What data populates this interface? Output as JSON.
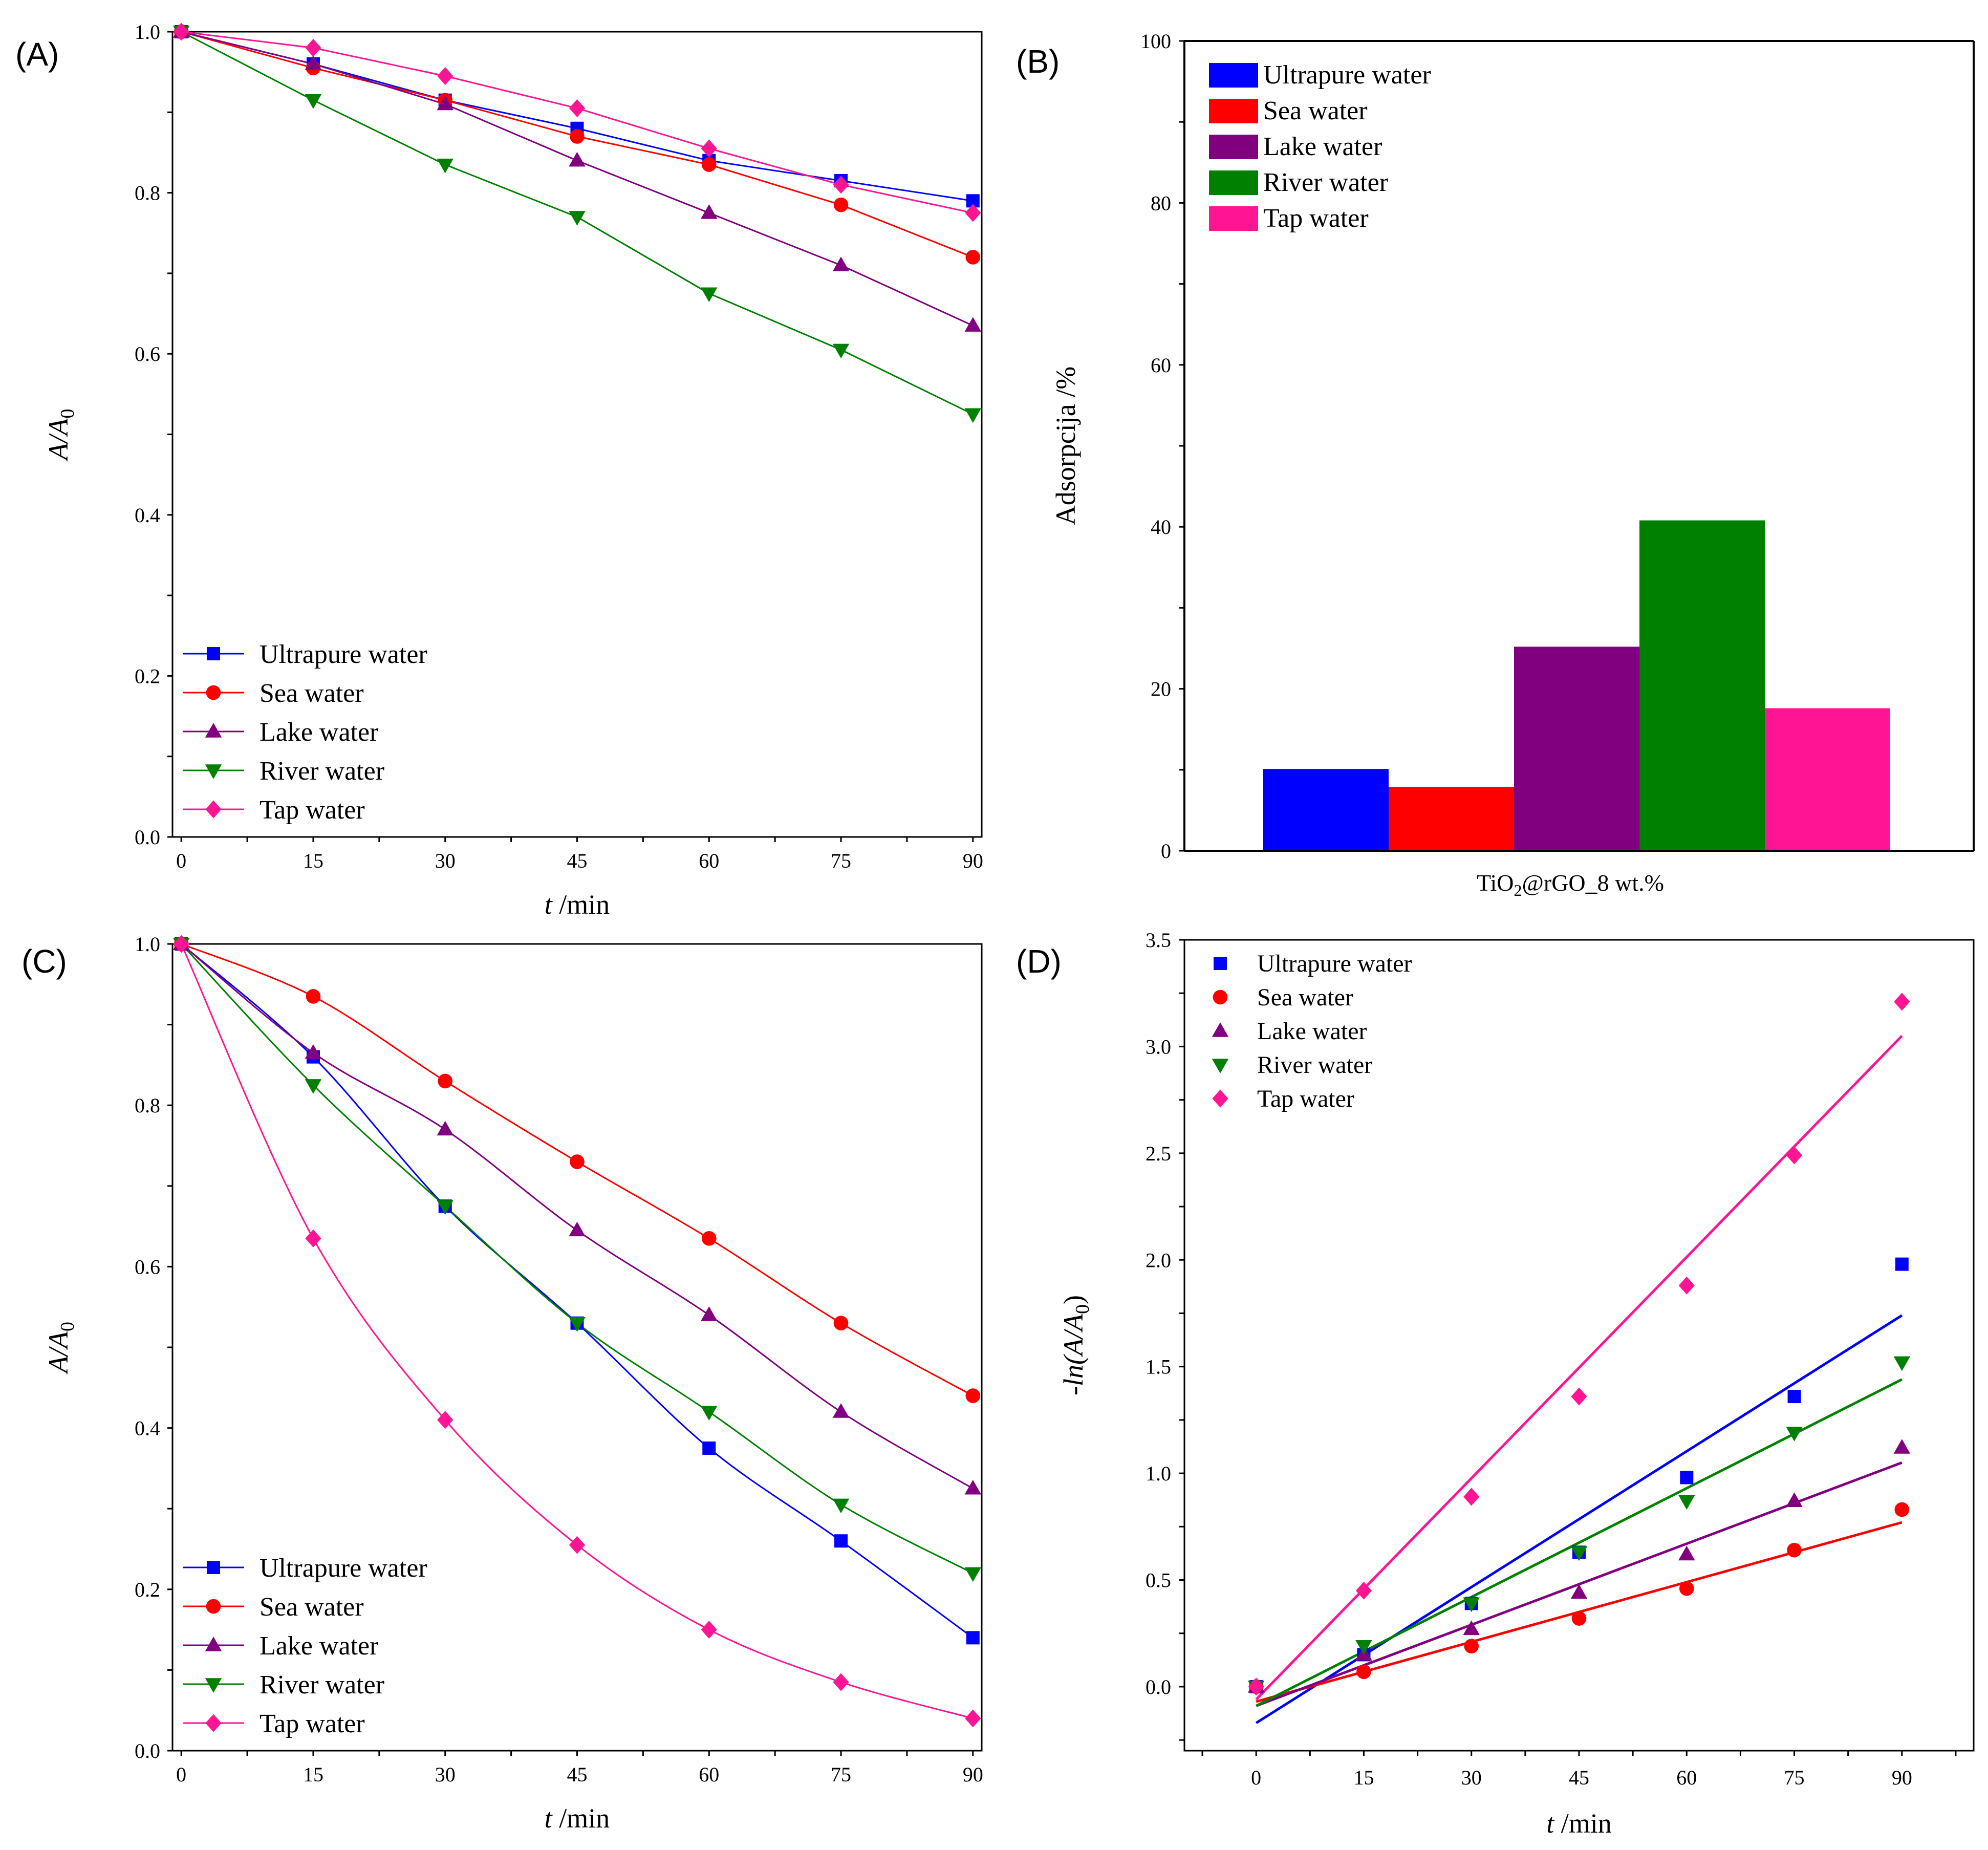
{
  "chart_data": [
    {
      "panel": "(A)",
      "type": "line",
      "x": [
        0,
        15,
        30,
        45,
        60,
        75,
        90
      ],
      "xticks": [
        "0",
        "15",
        "30",
        "45",
        "60",
        "75",
        "90"
      ],
      "xlim": [
        -1,
        91
      ],
      "ylim": [
        0,
        1.0
      ],
      "yticks": [
        "0.0",
        "0.2",
        "0.4",
        "0.6",
        "0.8",
        "1.0"
      ],
      "xlabel": {
        "italic": "t",
        "rest": " /min"
      },
      "ylabel": {
        "italic": "A",
        "rest": "/A",
        "sub": "0"
      },
      "legend_position": "bottom-left",
      "curve": "linear",
      "series": [
        {
          "name": "Ultrapure water",
          "color": "#0000ff",
          "marker": "square",
          "values": [
            1.0,
            0.96,
            0.915,
            0.88,
            0.84,
            0.815,
            0.79
          ]
        },
        {
          "name": "Sea water",
          "color": "#ff0000",
          "marker": "circle",
          "values": [
            1.0,
            0.955,
            0.915,
            0.87,
            0.835,
            0.785,
            0.72
          ]
        },
        {
          "name": "Lake water",
          "color": "#800080",
          "marker": "triangle-up",
          "values": [
            1.0,
            0.96,
            0.91,
            0.84,
            0.775,
            0.71,
            0.635
          ]
        },
        {
          "name": "River water",
          "color": "#008000",
          "marker": "triangle-down",
          "values": [
            1.0,
            0.915,
            0.835,
            0.77,
            0.675,
            0.605,
            0.525
          ]
        },
        {
          "name": "Tap water",
          "color": "#ff1493",
          "marker": "diamond",
          "values": [
            1.0,
            0.98,
            0.945,
            0.905,
            0.855,
            0.81,
            0.775
          ]
        }
      ]
    },
    {
      "panel": "(B)",
      "type": "bar",
      "categories": [
        "TiO2@rGO_8 wt.%"
      ],
      "category_label": {
        "pre": "TiO",
        "sub": "2",
        "post": "@rGO_8 wt.%"
      },
      "ylim": [
        0,
        100
      ],
      "yticks": [
        "0",
        "20",
        "40",
        "60",
        "80",
        "100"
      ],
      "ylabel": "Adsorpcija /%",
      "legend_position": "top-left",
      "series": [
        {
          "name": "Ultrapure water",
          "color": "#0000ff",
          "value": 10.1
        },
        {
          "name": "Sea water",
          "color": "#ff0000",
          "value": 7.9
        },
        {
          "name": "Lake water",
          "color": "#800080",
          "value": 25.2
        },
        {
          "name": "River water",
          "color": "#008000",
          "value": 40.8
        },
        {
          "name": "Tap water",
          "color": "#ff1493",
          "value": 17.6
        }
      ]
    },
    {
      "panel": "(C)",
      "type": "line",
      "x": [
        0,
        15,
        30,
        45,
        60,
        75,
        90
      ],
      "xticks": [
        "0",
        "15",
        "30",
        "45",
        "60",
        "75",
        "90"
      ],
      "xlim": [
        -1,
        91
      ],
      "ylim": [
        0,
        1.0
      ],
      "yticks": [
        "0.0",
        "0.2",
        "0.4",
        "0.6",
        "0.8",
        "1.0"
      ],
      "xlabel": {
        "italic": "t",
        "rest": " /min"
      },
      "ylabel": {
        "italic": "A",
        "rest": "/A",
        "sub": "0"
      },
      "legend_position": "bottom-left",
      "curve": "smooth",
      "series": [
        {
          "name": "Ultrapure water",
          "color": "#0000ff",
          "marker": "square",
          "values": [
            1.0,
            0.86,
            0.675,
            0.53,
            0.375,
            0.26,
            0.14
          ]
        },
        {
          "name": "Sea water",
          "color": "#ff0000",
          "marker": "circle",
          "values": [
            1.0,
            0.935,
            0.83,
            0.73,
            0.635,
            0.53,
            0.44
          ]
        },
        {
          "name": "Lake water",
          "color": "#800080",
          "marker": "triangle-up",
          "values": [
            1.0,
            0.865,
            0.77,
            0.645,
            0.54,
            0.42,
            0.325
          ]
        },
        {
          "name": "River water",
          "color": "#008000",
          "marker": "triangle-down",
          "values": [
            1.0,
            0.825,
            0.675,
            0.53,
            0.42,
            0.305,
            0.22
          ]
        },
        {
          "name": "Tap water",
          "color": "#ff1493",
          "marker": "diamond",
          "values": [
            1.0,
            0.635,
            0.41,
            0.255,
            0.15,
            0.085,
            0.04
          ]
        }
      ]
    },
    {
      "panel": "(D)",
      "type": "scatter",
      "x": [
        0,
        15,
        30,
        45,
        60,
        75,
        90
      ],
      "xticks": [
        "0",
        "15",
        "30",
        "45",
        "60",
        "75",
        "90"
      ],
      "xlim": [
        -10,
        100
      ],
      "ylim": [
        -0.3,
        3.5
      ],
      "yticks": [
        "0.0",
        "0.5",
        "1.0",
        "1.5",
        "2.0",
        "2.5",
        "3.0",
        "3.5"
      ],
      "xlabel": {
        "italic": "t",
        "rest": " /min"
      },
      "ylabel": {
        "pre": "-",
        "italic": "ln",
        "rest": "(A/A",
        "sub": "0",
        "post": ")"
      },
      "legend_position": "top-left",
      "series": [
        {
          "name": "Ultrapure water",
          "color": "#0000ff",
          "marker": "square",
          "values": [
            0.0,
            0.15,
            0.39,
            0.63,
            0.98,
            1.36,
            1.98
          ],
          "fit": [
            -0.17,
            1.74
          ]
        },
        {
          "name": "Sea water",
          "color": "#ff0000",
          "marker": "circle",
          "values": [
            0.0,
            0.07,
            0.19,
            0.32,
            0.46,
            0.64,
            0.83
          ],
          "fit": [
            -0.07,
            0.77
          ]
        },
        {
          "name": "Lake water",
          "color": "#800080",
          "marker": "triangle-up",
          "values": [
            0.0,
            0.15,
            0.27,
            0.44,
            0.62,
            0.87,
            1.12
          ],
          "fit": [
            -0.09,
            1.05
          ]
        },
        {
          "name": "River water",
          "color": "#008000",
          "marker": "triangle-down",
          "values": [
            0.0,
            0.19,
            0.39,
            0.63,
            0.87,
            1.19,
            1.52
          ],
          "fit": [
            -0.09,
            1.44
          ]
        },
        {
          "name": "Tap water",
          "color": "#ff1493",
          "marker": "diamond",
          "values": [
            0.0,
            0.45,
            0.89,
            1.36,
            1.88,
            2.49,
            3.21
          ],
          "fit": [
            -0.06,
            3.05
          ]
        }
      ]
    }
  ]
}
